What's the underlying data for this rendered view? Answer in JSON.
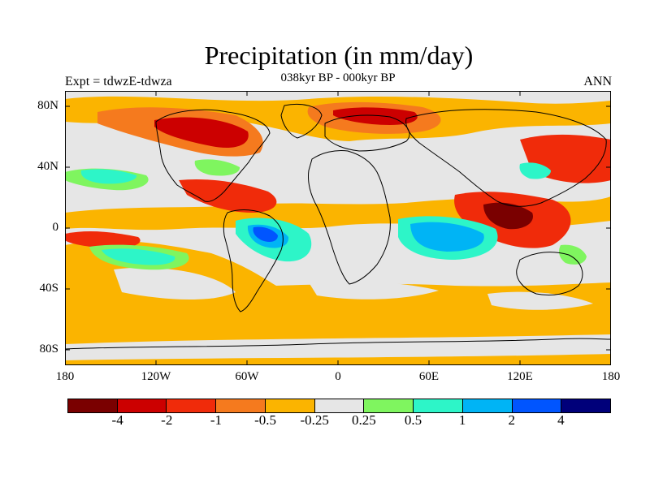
{
  "title": "Precipitation (in mm/day)",
  "subtitle": "038kyr BP - 000kyr BP",
  "experiment": "Expt = tdwzE-tdwza",
  "season": "ANN",
  "lat_ticks": [
    "80N",
    "40N",
    "0",
    "40S",
    "80S"
  ],
  "lon_ticks": [
    "180",
    "120W",
    "60W",
    "0",
    "60E",
    "120E",
    "180"
  ],
  "colorbar": {
    "colors": [
      "#7a0000",
      "#cc0000",
      "#f02b0a",
      "#f57a1e",
      "#fbb400",
      "#e6e6e6",
      "#7ff55f",
      "#2df5c8",
      "#00b4f5",
      "#0055ff",
      "#00007a"
    ],
    "labels": [
      "-4",
      "-2",
      "-1",
      "-0.5",
      "-0.25",
      "0.25",
      "0.5",
      "1",
      "2",
      "4"
    ]
  },
  "map_colors": {
    "background": "#e6e6e6",
    "coast": "#000000"
  }
}
